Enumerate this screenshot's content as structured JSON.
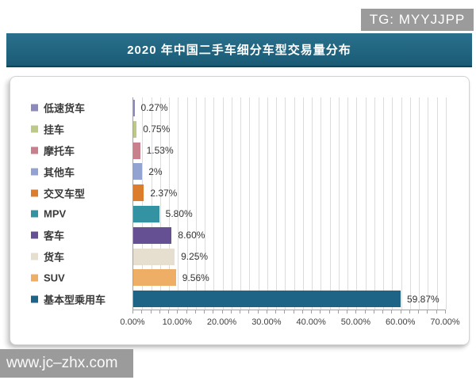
{
  "watermark_top": {
    "text": "TG: MYYJJPP"
  },
  "watermark_bottom": {
    "text": "www.jc–zhx.com"
  },
  "title": "2020 年中国二手车细分车型交易量分布",
  "colors": {
    "title_bar": "#20647f",
    "watermark_bg": "#9b9b9b",
    "grid": "#dcdcdc",
    "axis": "#a0a0a0",
    "text": "#333333"
  },
  "chart_data": {
    "type": "bar",
    "orientation": "horizontal",
    "title": "2020 年中国二手车细分车型交易量分布",
    "categories": [
      "低速货车",
      "挂车",
      "摩托车",
      "其他车",
      "交叉车型",
      "MPV",
      "客车",
      "货车",
      "SUV",
      "基本型乘用车"
    ],
    "values": [
      0.27,
      0.75,
      1.53,
      2,
      2.37,
      5.8,
      8.6,
      9.25,
      9.56,
      59.87
    ],
    "labels": [
      "0.27%",
      "0.75%",
      "1.53%",
      "2%",
      "2.37%",
      "5.80%",
      "8.60%",
      "9.25%",
      "9.56%",
      "59.87%"
    ],
    "colors": [
      "#8e89bb",
      "#bcc987",
      "#c8808d",
      "#92a3d2",
      "#dc7d2e",
      "#3493a3",
      "#655093",
      "#e6dfd0",
      "#efae66",
      "#1d6486"
    ],
    "x_axis": {
      "min": 0,
      "max": 70,
      "minor_step": 2,
      "major_step": 10,
      "ticks": [
        "0.00%",
        "10.00%",
        "20.00%",
        "30.00%",
        "40.00%",
        "50.00%",
        "60.00%",
        "70.00%"
      ]
    },
    "legend_position": "left",
    "grid": true
  }
}
